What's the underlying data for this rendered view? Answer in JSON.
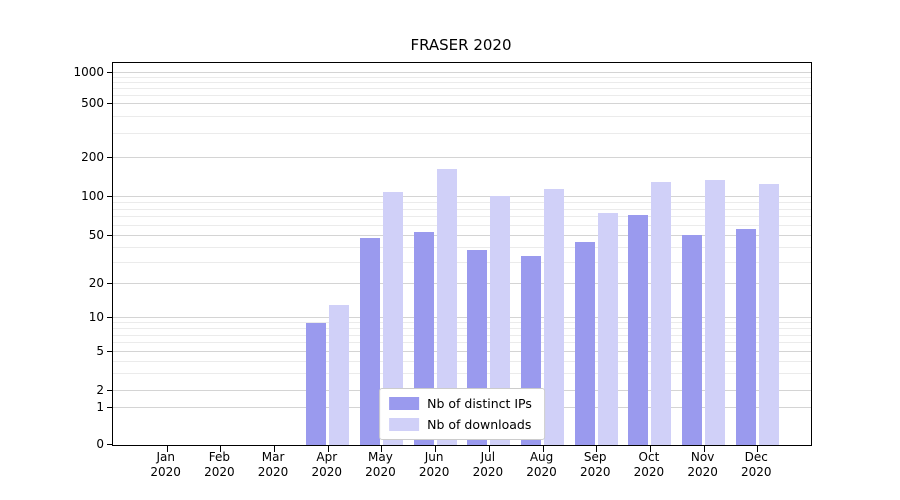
{
  "title": "FRASER 2020",
  "chart_data": {
    "type": "bar",
    "scale": "symlog",
    "title": "FRASER 2020",
    "xlabel": "",
    "ylabel": "",
    "grid": true,
    "legend_position": "lower center",
    "categories": [
      "Jan",
      "Feb",
      "Mar",
      "Apr",
      "May",
      "Jun",
      "Jul",
      "Aug",
      "Sep",
      "Oct",
      "Nov",
      "Dec"
    ],
    "category_year": "2020",
    "yticks": [
      0,
      1,
      2,
      5,
      10,
      20,
      50,
      100,
      200,
      500,
      1000
    ],
    "ylim": [
      0,
      1300
    ],
    "series": [
      {
        "name": "Nb of distinct IPs",
        "color": "#9a9aee",
        "values": [
          0,
          0,
          0,
          9,
          48,
          54,
          38,
          34,
          45,
          72,
          51,
          57
        ]
      },
      {
        "name": "Nb of downloads",
        "color": "#d0d0f8",
        "values": [
          0,
          0,
          0,
          13,
          110,
          165,
          102,
          115,
          75,
          130,
          135,
          125
        ]
      }
    ]
  }
}
